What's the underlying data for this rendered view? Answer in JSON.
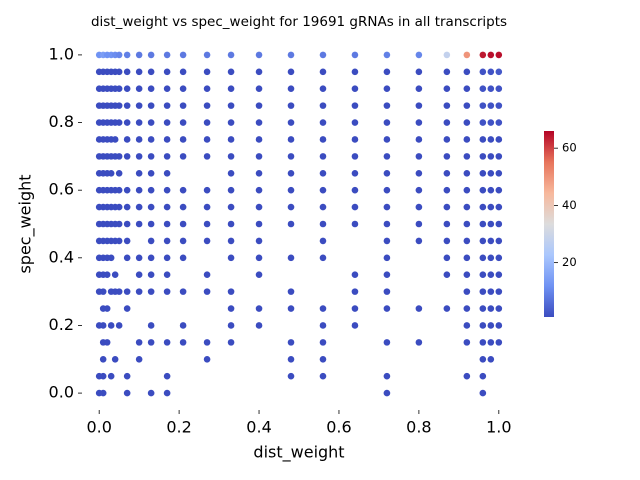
{
  "chart_data": {
    "type": "scatter",
    "title": "dist_weight vs spec_weight for 19691 gRNAs in all transcripts",
    "x_label": "dist_weight",
    "y_label": "spec_weight",
    "xlim": [
      -0.043,
      1.043
    ],
    "ylim": [
      -0.05,
      1.05
    ],
    "xticks": [
      {
        "value": 0,
        "label": "0.0"
      },
      0.2,
      0.4,
      0.6,
      0.8,
      {
        "value": 1,
        "label": "1.0"
      }
    ],
    "yticks": [
      {
        "value": 0,
        "label": "0.0"
      },
      0.2,
      0.4,
      0.6,
      0.8,
      {
        "value": 1,
        "label": "1.0"
      }
    ],
    "colormap": [
      "#3b4cc0",
      "#6f92f3",
      "#aac7fd",
      "#dddcdc",
      "#f7b89c",
      "#e7745b",
      "#b40426"
    ],
    "clim": [
      1,
      66
    ],
    "cticks": [
      20,
      40,
      60
    ],
    "columns": [
      {
        "x": 0.0,
        "y": [
          1,
          0.95,
          0.9,
          0.85,
          0.8,
          0.75,
          0.7,
          0.65,
          0.6,
          0.55,
          0.5,
          0.45,
          0.4,
          0.35,
          0.3,
          0.2,
          0.05,
          0.0
        ],
        "c": [
          12,
          1,
          1,
          1,
          1,
          1,
          1,
          1,
          1,
          1,
          1,
          1,
          1,
          1,
          1,
          1,
          1,
          1
        ]
      },
      {
        "x": 0.01,
        "y": [
          1,
          0.95,
          0.9,
          0.85,
          0.8,
          0.75,
          0.7,
          0.65,
          0.6,
          0.55,
          0.5,
          0.45,
          0.4,
          0.35,
          0.3,
          0.25,
          0.2,
          0.15,
          0.1,
          0.05,
          0.0
        ],
        "c": [
          14,
          1,
          1,
          1,
          1,
          1,
          1,
          1,
          1,
          1,
          1,
          1,
          1,
          1,
          1,
          1,
          1,
          1,
          1,
          1,
          1
        ]
      },
      {
        "x": 0.02,
        "y": [
          1,
          0.95,
          0.9,
          0.85,
          0.8,
          0.75,
          0.7,
          0.65,
          0.6,
          0.55,
          0.5,
          0.45,
          0.4,
          0.35,
          0.25,
          0.15
        ],
        "c": [
          12,
          1,
          1,
          1,
          1,
          1,
          1,
          1,
          1,
          1,
          1,
          1,
          1,
          1,
          1,
          1
        ]
      },
      {
        "x": 0.03,
        "y": [
          1,
          0.95,
          0.9,
          0.85,
          0.8,
          0.75,
          0.7,
          0.65,
          0.6,
          0.55,
          0.5,
          0.45,
          0.4,
          0.3,
          0.2,
          0.05
        ],
        "c": [
          12,
          1,
          1,
          1,
          1,
          1,
          1,
          1,
          1,
          1,
          1,
          1,
          1,
          1,
          1,
          1
        ]
      },
      {
        "x": 0.04,
        "y": [
          1,
          0.95,
          0.9,
          0.85,
          0.8,
          0.75,
          0.7,
          0.6,
          0.55,
          0.5,
          0.45,
          0.35,
          0.3,
          0.1
        ],
        "c": [
          11,
          1,
          1,
          1,
          1,
          1,
          1,
          1,
          1,
          1,
          1,
          1,
          1,
          1
        ]
      },
      {
        "x": 0.05,
        "y": [
          1,
          0.95,
          0.9,
          0.85,
          0.8,
          0.7,
          0.65,
          0.6,
          0.55,
          0.5,
          0.45,
          0.3,
          0.2
        ],
        "c": [
          10,
          1,
          1,
          1,
          1,
          1,
          1,
          1,
          1,
          1,
          1,
          1,
          1
        ]
      },
      {
        "x": 0.07,
        "y": [
          1,
          0.95,
          0.9,
          0.85,
          0.8,
          0.75,
          0.7,
          0.6,
          0.55,
          0.5,
          0.45,
          0.4,
          0.3,
          0.25,
          0.05,
          0.0
        ],
        "c": [
          9,
          1,
          1,
          1,
          1,
          1,
          1,
          1,
          1,
          1,
          1,
          1,
          1,
          1,
          1,
          1
        ]
      },
      {
        "x": 0.1,
        "y": [
          1,
          0.95,
          0.9,
          0.85,
          0.8,
          0.75,
          0.7,
          0.65,
          0.6,
          0.55,
          0.5,
          0.4,
          0.35,
          0.3,
          0.15,
          0.1
        ],
        "c": [
          8,
          1,
          1,
          1,
          1,
          1,
          1,
          1,
          1,
          1,
          1,
          1,
          1,
          1,
          1,
          1
        ]
      },
      {
        "x": 0.13,
        "y": [
          1,
          0.95,
          0.9,
          0.85,
          0.8,
          0.75,
          0.7,
          0.65,
          0.6,
          0.55,
          0.5,
          0.45,
          0.4,
          0.35,
          0.3,
          0.2,
          0.15,
          0.0
        ],
        "c": [
          8,
          1,
          1,
          1,
          1,
          1,
          1,
          1,
          1,
          1,
          1,
          1,
          1,
          1,
          1,
          1,
          1,
          1
        ]
      },
      {
        "x": 0.17,
        "y": [
          1,
          0.95,
          0.9,
          0.85,
          0.8,
          0.75,
          0.7,
          0.65,
          0.6,
          0.55,
          0.5,
          0.45,
          0.4,
          0.35,
          0.3,
          0.15,
          0.05,
          0.0
        ],
        "c": [
          8,
          1,
          1,
          1,
          1,
          1,
          1,
          1,
          1,
          1,
          1,
          1,
          1,
          1,
          1,
          1,
          1,
          1
        ]
      },
      {
        "x": 0.21,
        "y": [
          1,
          0.95,
          0.9,
          0.85,
          0.8,
          0.75,
          0.7,
          0.6,
          0.55,
          0.5,
          0.45,
          0.4,
          0.3,
          0.2,
          0.15
        ],
        "c": [
          8,
          1,
          1,
          1,
          1,
          1,
          1,
          1,
          1,
          1,
          1,
          1,
          1,
          1,
          1
        ]
      },
      {
        "x": 0.27,
        "y": [
          1,
          0.95,
          0.9,
          0.85,
          0.8,
          0.75,
          0.7,
          0.6,
          0.55,
          0.5,
          0.45,
          0.35,
          0.3,
          0.15,
          0.1
        ],
        "c": [
          8,
          1,
          1,
          1,
          1,
          1,
          1,
          1,
          1,
          1,
          1,
          1,
          1,
          1,
          1
        ]
      },
      {
        "x": 0.33,
        "y": [
          1,
          0.95,
          0.9,
          0.85,
          0.8,
          0.75,
          0.7,
          0.65,
          0.6,
          0.55,
          0.5,
          0.45,
          0.4,
          0.3,
          0.25,
          0.2,
          0.15
        ],
        "c": [
          8,
          1,
          1,
          1,
          1,
          1,
          1,
          1,
          1,
          1,
          1,
          1,
          1,
          1,
          1,
          1,
          1
        ]
      },
      {
        "x": 0.4,
        "y": [
          1,
          0.95,
          0.9,
          0.85,
          0.8,
          0.75,
          0.7,
          0.65,
          0.6,
          0.55,
          0.5,
          0.45,
          0.4,
          0.35,
          0.25,
          0.2
        ],
        "c": [
          8,
          1,
          1,
          1,
          1,
          1,
          1,
          1,
          1,
          1,
          1,
          1,
          1,
          1,
          1,
          1
        ]
      },
      {
        "x": 0.48,
        "y": [
          1,
          0.95,
          0.9,
          0.85,
          0.8,
          0.75,
          0.7,
          0.65,
          0.6,
          0.55,
          0.5,
          0.4,
          0.3,
          0.25,
          0.15,
          0.1,
          0.05
        ],
        "c": [
          8,
          1,
          1,
          1,
          1,
          1,
          1,
          1,
          1,
          1,
          1,
          1,
          1,
          1,
          1,
          1,
          1
        ]
      },
      {
        "x": 0.56,
        "y": [
          1,
          0.95,
          0.9,
          0.85,
          0.8,
          0.75,
          0.7,
          0.65,
          0.6,
          0.55,
          0.5,
          0.45,
          0.4,
          0.25,
          0.2,
          0.15,
          0.1,
          0.05
        ],
        "c": [
          8,
          1,
          1,
          1,
          1,
          1,
          1,
          1,
          1,
          1,
          1,
          1,
          1,
          1,
          1,
          1,
          1,
          1
        ]
      },
      {
        "x": 0.64,
        "y": [
          1,
          0.95,
          0.9,
          0.85,
          0.8,
          0.75,
          0.7,
          0.65,
          0.6,
          0.55,
          0.5,
          0.35,
          0.3,
          0.25,
          0.2
        ],
        "c": [
          8,
          1,
          1,
          1,
          1,
          1,
          1,
          1,
          1,
          1,
          1,
          1,
          1,
          1,
          1
        ]
      },
      {
        "x": 0.72,
        "y": [
          1,
          0.95,
          0.9,
          0.85,
          0.8,
          0.75,
          0.7,
          0.65,
          0.6,
          0.55,
          0.5,
          0.45,
          0.4,
          0.35,
          0.3,
          0.25,
          0.15,
          0.05,
          0.0
        ],
        "c": [
          9,
          1,
          1,
          1,
          1,
          1,
          1,
          1,
          1,
          1,
          1,
          1,
          1,
          1,
          1,
          1,
          1,
          1,
          1
        ]
      },
      {
        "x": 0.8,
        "y": [
          1,
          0.95,
          0.9,
          0.85,
          0.8,
          0.75,
          0.7,
          0.65,
          0.6,
          0.55,
          0.5,
          0.45,
          0.25,
          0.15
        ],
        "c": [
          10,
          1,
          1,
          1,
          1,
          1,
          1,
          1,
          1,
          1,
          1,
          1,
          1,
          1
        ]
      },
      {
        "x": 0.87,
        "y": [
          1,
          0.95,
          0.9,
          0.85,
          0.8,
          0.75,
          0.7,
          0.65,
          0.6,
          0.55,
          0.5,
          0.45,
          0.4,
          0.35,
          0.25
        ],
        "c": [
          28,
          1,
          1,
          1,
          1,
          1,
          1,
          1,
          1,
          1,
          1,
          1,
          1,
          1,
          1
        ]
      },
      {
        "x": 0.92,
        "y": [
          1,
          0.95,
          0.9,
          0.85,
          0.8,
          0.75,
          0.7,
          0.65,
          0.6,
          0.55,
          0.5,
          0.45,
          0.4,
          0.35,
          0.3,
          0.25,
          0.2,
          0.15,
          0.05
        ],
        "c": [
          50,
          1,
          1,
          1,
          1,
          1,
          1,
          1,
          1,
          1,
          1,
          1,
          1,
          1,
          1,
          1,
          1,
          1,
          1
        ]
      },
      {
        "x": 0.96,
        "y": [
          1,
          0.95,
          0.9,
          0.85,
          0.8,
          0.75,
          0.7,
          0.65,
          0.6,
          0.55,
          0.5,
          0.45,
          0.4,
          0.35,
          0.3,
          0.25,
          0.2,
          0.15,
          0.1,
          0.05,
          0.0
        ],
        "c": [
          64,
          2,
          2,
          2,
          2,
          1,
          1,
          1,
          1,
          1,
          1,
          1,
          1,
          1,
          1,
          1,
          1,
          1,
          1,
          1,
          1
        ]
      },
      {
        "x": 0.98,
        "y": [
          1,
          0.95,
          0.9,
          0.85,
          0.8,
          0.75,
          0.7,
          0.65,
          0.6,
          0.55,
          0.5,
          0.45,
          0.4,
          0.35,
          0.3,
          0.25,
          0.2,
          0.15,
          0.1
        ],
        "c": [
          65,
          2,
          2,
          2,
          2,
          1,
          1,
          1,
          1,
          1,
          1,
          1,
          1,
          1,
          1,
          1,
          1,
          1,
          1
        ]
      },
      {
        "x": 1.0,
        "y": [
          1,
          0.95,
          0.9,
          0.85,
          0.8,
          0.75,
          0.7,
          0.65,
          0.6,
          0.55,
          0.5,
          0.45,
          0.4,
          0.35,
          0.3,
          0.25,
          0.2,
          0.15
        ],
        "c": [
          65,
          3,
          2,
          2,
          2,
          1,
          1,
          1,
          1,
          1,
          1,
          1,
          1,
          1,
          1,
          1,
          1,
          1
        ]
      }
    ]
  }
}
